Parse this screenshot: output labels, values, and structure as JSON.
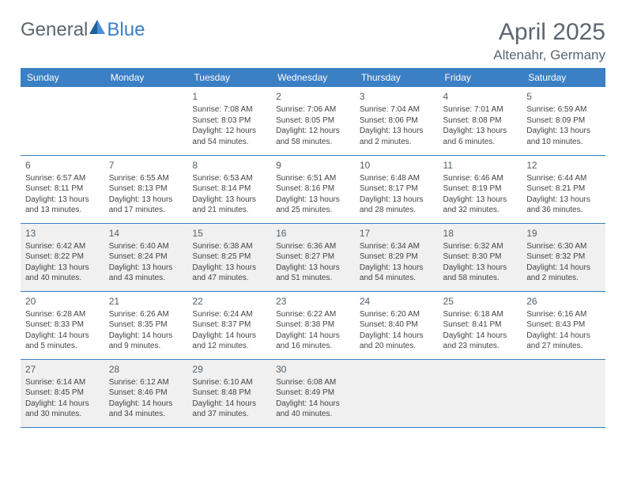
{
  "logo": {
    "part1": "General",
    "part2": "Blue"
  },
  "title": "April 2025",
  "location": "Altenahr, Germany",
  "colors": {
    "header_bg": "#3b7fc4",
    "header_text": "#ffffff",
    "grey_row": "#f0f0f0",
    "text": "#444444",
    "title_text": "#5c6670"
  },
  "dayHeaders": [
    "Sunday",
    "Monday",
    "Tuesday",
    "Wednesday",
    "Thursday",
    "Friday",
    "Saturday"
  ],
  "weeks": [
    {
      "grey": false,
      "days": [
        null,
        null,
        {
          "n": "1",
          "sunrise": "7:08 AM",
          "sunset": "8:03 PM",
          "daylight": "12 hours and 54 minutes."
        },
        {
          "n": "2",
          "sunrise": "7:06 AM",
          "sunset": "8:05 PM",
          "daylight": "12 hours and 58 minutes."
        },
        {
          "n": "3",
          "sunrise": "7:04 AM",
          "sunset": "8:06 PM",
          "daylight": "13 hours and 2 minutes."
        },
        {
          "n": "4",
          "sunrise": "7:01 AM",
          "sunset": "8:08 PM",
          "daylight": "13 hours and 6 minutes."
        },
        {
          "n": "5",
          "sunrise": "6:59 AM",
          "sunset": "8:09 PM",
          "daylight": "13 hours and 10 minutes."
        }
      ]
    },
    {
      "grey": false,
      "days": [
        {
          "n": "6",
          "sunrise": "6:57 AM",
          "sunset": "8:11 PM",
          "daylight": "13 hours and 13 minutes."
        },
        {
          "n": "7",
          "sunrise": "6:55 AM",
          "sunset": "8:13 PM",
          "daylight": "13 hours and 17 minutes."
        },
        {
          "n": "8",
          "sunrise": "6:53 AM",
          "sunset": "8:14 PM",
          "daylight": "13 hours and 21 minutes."
        },
        {
          "n": "9",
          "sunrise": "6:51 AM",
          "sunset": "8:16 PM",
          "daylight": "13 hours and 25 minutes."
        },
        {
          "n": "10",
          "sunrise": "6:48 AM",
          "sunset": "8:17 PM",
          "daylight": "13 hours and 28 minutes."
        },
        {
          "n": "11",
          "sunrise": "6:46 AM",
          "sunset": "8:19 PM",
          "daylight": "13 hours and 32 minutes."
        },
        {
          "n": "12",
          "sunrise": "6:44 AM",
          "sunset": "8:21 PM",
          "daylight": "13 hours and 36 minutes."
        }
      ]
    },
    {
      "grey": true,
      "days": [
        {
          "n": "13",
          "sunrise": "6:42 AM",
          "sunset": "8:22 PM",
          "daylight": "13 hours and 40 minutes."
        },
        {
          "n": "14",
          "sunrise": "6:40 AM",
          "sunset": "8:24 PM",
          "daylight": "13 hours and 43 minutes."
        },
        {
          "n": "15",
          "sunrise": "6:38 AM",
          "sunset": "8:25 PM",
          "daylight": "13 hours and 47 minutes."
        },
        {
          "n": "16",
          "sunrise": "6:36 AM",
          "sunset": "8:27 PM",
          "daylight": "13 hours and 51 minutes."
        },
        {
          "n": "17",
          "sunrise": "6:34 AM",
          "sunset": "8:29 PM",
          "daylight": "13 hours and 54 minutes."
        },
        {
          "n": "18",
          "sunrise": "6:32 AM",
          "sunset": "8:30 PM",
          "daylight": "13 hours and 58 minutes."
        },
        {
          "n": "19",
          "sunrise": "6:30 AM",
          "sunset": "8:32 PM",
          "daylight": "14 hours and 2 minutes."
        }
      ]
    },
    {
      "grey": false,
      "days": [
        {
          "n": "20",
          "sunrise": "6:28 AM",
          "sunset": "8:33 PM",
          "daylight": "14 hours and 5 minutes."
        },
        {
          "n": "21",
          "sunrise": "6:26 AM",
          "sunset": "8:35 PM",
          "daylight": "14 hours and 9 minutes."
        },
        {
          "n": "22",
          "sunrise": "6:24 AM",
          "sunset": "8:37 PM",
          "daylight": "14 hours and 12 minutes."
        },
        {
          "n": "23",
          "sunrise": "6:22 AM",
          "sunset": "8:38 PM",
          "daylight": "14 hours and 16 minutes."
        },
        {
          "n": "24",
          "sunrise": "6:20 AM",
          "sunset": "8:40 PM",
          "daylight": "14 hours and 20 minutes."
        },
        {
          "n": "25",
          "sunrise": "6:18 AM",
          "sunset": "8:41 PM",
          "daylight": "14 hours and 23 minutes."
        },
        {
          "n": "26",
          "sunrise": "6:16 AM",
          "sunset": "8:43 PM",
          "daylight": "14 hours and 27 minutes."
        }
      ]
    },
    {
      "grey": true,
      "days": [
        {
          "n": "27",
          "sunrise": "6:14 AM",
          "sunset": "8:45 PM",
          "daylight": "14 hours and 30 minutes."
        },
        {
          "n": "28",
          "sunrise": "6:12 AM",
          "sunset": "8:46 PM",
          "daylight": "14 hours and 34 minutes."
        },
        {
          "n": "29",
          "sunrise": "6:10 AM",
          "sunset": "8:48 PM",
          "daylight": "14 hours and 37 minutes."
        },
        {
          "n": "30",
          "sunrise": "6:08 AM",
          "sunset": "8:49 PM",
          "daylight": "14 hours and 40 minutes."
        },
        null,
        null,
        null
      ]
    }
  ]
}
